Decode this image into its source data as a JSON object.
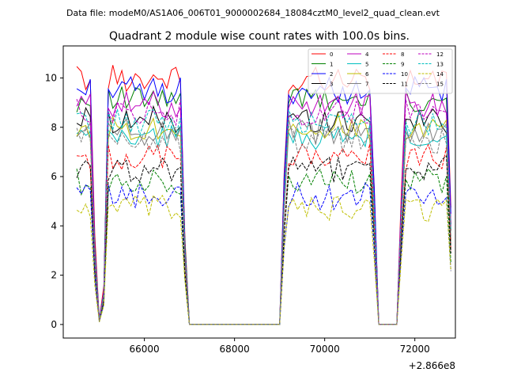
{
  "header": {
    "data_file_label": "Data file: modeM0/AS1A06_006T01_9000002684_18084cztM0_level2_quad_clean.evt"
  },
  "chart_data": {
    "type": "line",
    "title": "Quadrant 2 module wise count rates with 100.0s bins.",
    "xlabel": "",
    "ylabel": "",
    "x_offset_label": "+2.866e8",
    "xlim": [
      64200,
      72900
    ],
    "ylim": [
      -0.55,
      11.3
    ],
    "xticks": [
      66000,
      68000,
      70000,
      72000
    ],
    "xtick_labels": [
      "66000",
      "68000",
      "70000",
      "72000"
    ],
    "yticks": [
      0,
      2,
      4,
      6,
      8,
      10
    ],
    "ytick_labels": [
      "0",
      "2",
      "4",
      "6",
      "8",
      "10"
    ],
    "legend_location": "upper right",
    "legend_columns": 4,
    "time_grid": {
      "start": 64500,
      "step": 100,
      "segments": [
        [
          64500,
          64900
        ],
        [
          65000,
          66900
        ],
        [
          67000,
          69000
        ],
        [
          69100,
          71100
        ],
        [
          71200,
          71600
        ],
        [
          71700,
          72800
        ]
      ]
    },
    "series": [
      {
        "name": "0",
        "color": "#ff0000",
        "dash": "solid",
        "level": 10.0
      },
      {
        "name": "1",
        "color": "#008000",
        "dash": "solid",
        "level": 9.1
      },
      {
        "name": "2",
        "color": "#0000ff",
        "dash": "solid",
        "level": 9.5
      },
      {
        "name": "3",
        "color": "#000000",
        "dash": "solid",
        "level": 8.3
      },
      {
        "name": "4",
        "color": "#bf00bf",
        "dash": "solid",
        "level": 8.9
      },
      {
        "name": "5",
        "color": "#00bfbf",
        "dash": "solid",
        "level": 7.6
      },
      {
        "name": "6",
        "color": "#bfbf00",
        "dash": "solid",
        "level": 8.0
      },
      {
        "name": "7",
        "color": "#808080",
        "dash": "solid",
        "level": 7.8
      },
      {
        "name": "8",
        "color": "#ff0000",
        "dash": "dashed",
        "level": 6.8
      },
      {
        "name": "9",
        "color": "#008000",
        "dash": "dashed",
        "level": 5.8
      },
      {
        "name": "10",
        "color": "#0000ff",
        "dash": "dashed",
        "level": 5.2
      },
      {
        "name": "11",
        "color": "#000000",
        "dash": "dashed",
        "level": 6.3
      },
      {
        "name": "12",
        "color": "#bf00bf",
        "dash": "dashed",
        "level": 8.6
      },
      {
        "name": "13",
        "color": "#00bfbf",
        "dash": "dashed",
        "level": 8.2
      },
      {
        "name": "14",
        "color": "#bfbf00",
        "dash": "dashed",
        "level": 4.7
      },
      {
        "name": "15",
        "color": "#808080",
        "dash": "dashed",
        "level": 7.5
      }
    ]
  }
}
